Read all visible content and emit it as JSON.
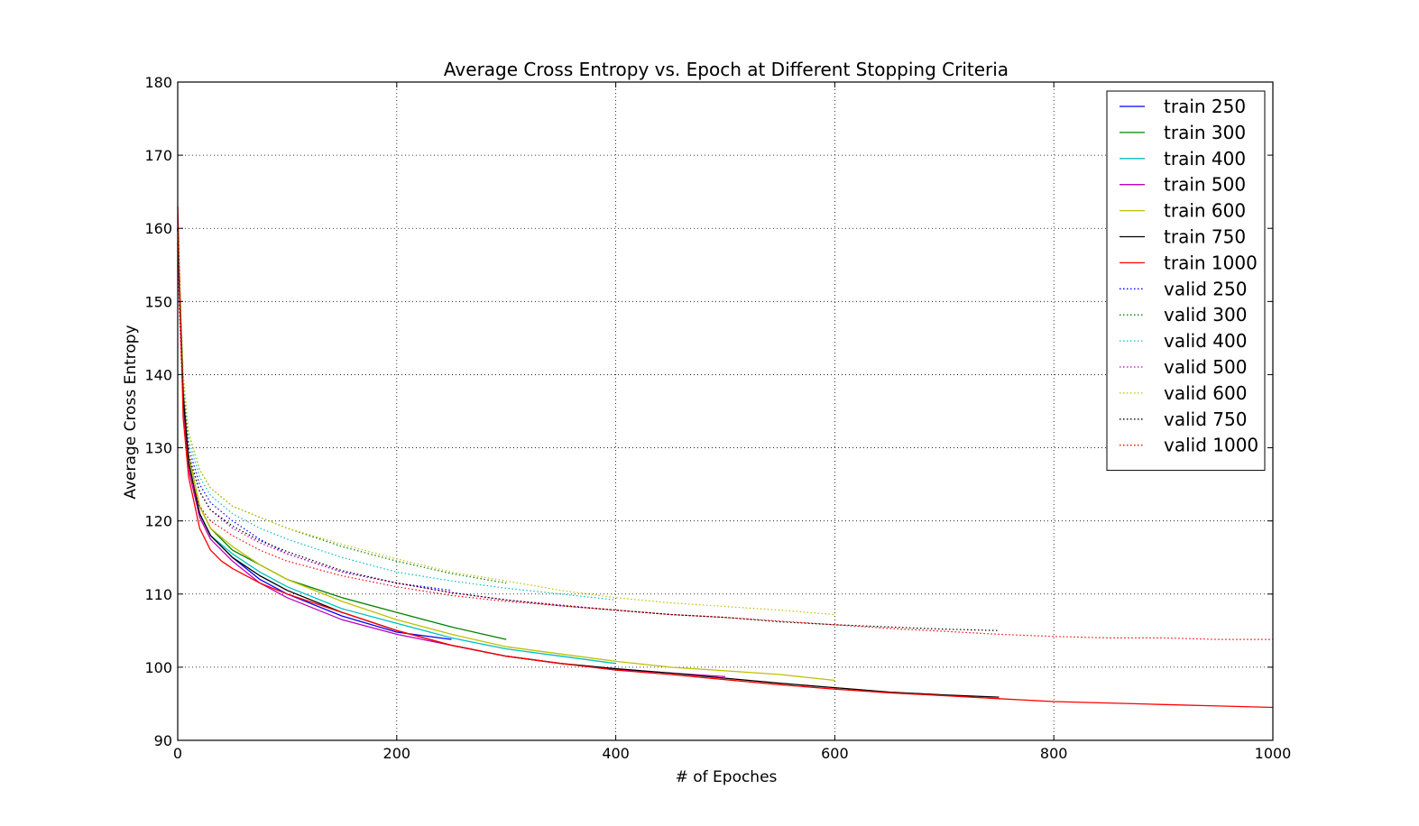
{
  "chart_data": {
    "type": "line",
    "title": "Average Cross Entropy vs. Epoch  at Different Stopping Criteria",
    "xlabel": "# of Epoches",
    "ylabel": "Average Cross Entropy",
    "xlim": [
      0,
      1000
    ],
    "ylim": [
      90,
      180
    ],
    "xticks": [
      0,
      200,
      400,
      600,
      800,
      1000
    ],
    "yticks": [
      90,
      100,
      110,
      120,
      130,
      140,
      150,
      160,
      170,
      180
    ],
    "grid": true,
    "legend_position": "top-right",
    "series": [
      {
        "name": "train 250",
        "color": "#0000ff",
        "style": "solid",
        "x": [
          0,
          5,
          10,
          20,
          30,
          50,
          75,
          100,
          150,
          200,
          250
        ],
        "y": [
          160,
          137,
          128,
          121,
          118,
          115,
          112,
          110,
          107,
          104.8,
          103.8
        ]
      },
      {
        "name": "train 300",
        "color": "#008000",
        "style": "solid",
        "x": [
          0,
          5,
          10,
          20,
          30,
          50,
          75,
          100,
          150,
          200,
          250,
          300
        ],
        "y": [
          160,
          138,
          129,
          122,
          119,
          116,
          114,
          112,
          109.5,
          107.5,
          105.5,
          103.8
        ]
      },
      {
        "name": "train 400",
        "color": "#00bfbf",
        "style": "solid",
        "x": [
          0,
          5,
          10,
          20,
          30,
          50,
          75,
          100,
          150,
          200,
          250,
          300,
          350,
          400
        ],
        "y": [
          160,
          137,
          128,
          121,
          118,
          115.5,
          113,
          111,
          108,
          106,
          104,
          102.5,
          101.5,
          100.5
        ]
      },
      {
        "name": "train 500",
        "color": "#bf00bf",
        "style": "solid",
        "x": [
          0,
          5,
          10,
          20,
          30,
          50,
          75,
          100,
          150,
          200,
          250,
          300,
          350,
          400,
          450,
          500
        ],
        "y": [
          158,
          136,
          127,
          120.5,
          117.5,
          114.5,
          111.5,
          109.5,
          106.5,
          104.5,
          103,
          101.5,
          100.5,
          99.7,
          99.2,
          98.7
        ]
      },
      {
        "name": "train 600",
        "color": "#bfbf00",
        "style": "solid",
        "x": [
          0,
          5,
          10,
          20,
          30,
          50,
          75,
          100,
          150,
          200,
          250,
          300,
          350,
          400,
          450,
          500,
          550,
          600
        ],
        "y": [
          160,
          138,
          129,
          122,
          119,
          116.5,
          114,
          112,
          109,
          106.5,
          104.5,
          102.8,
          101.8,
          100.8,
          100,
          99.5,
          99,
          98.2
        ]
      },
      {
        "name": "train 750",
        "color": "#000000",
        "style": "solid",
        "x": [
          0,
          5,
          10,
          20,
          30,
          50,
          75,
          100,
          150,
          200,
          250,
          300,
          350,
          400,
          450,
          500,
          550,
          600,
          650,
          700,
          750
        ],
        "y": [
          160,
          137,
          128,
          121,
          118,
          115,
          112.5,
          110.5,
          107.5,
          105,
          103,
          101.5,
          100.5,
          99.8,
          99.2,
          98.5,
          97.8,
          97.2,
          96.6,
          96.2,
          95.9
        ]
      },
      {
        "name": "train 1000",
        "color": "#ff0000",
        "style": "solid",
        "x": [
          0,
          5,
          10,
          20,
          30,
          40,
          50,
          75,
          100,
          150,
          200,
          250,
          300,
          350,
          400,
          450,
          500,
          550,
          600,
          650,
          700,
          750,
          800,
          850,
          900,
          950,
          1000
        ],
        "y": [
          163,
          134,
          126,
          119,
          116,
          114.5,
          113.5,
          111.5,
          110,
          107.5,
          105,
          103,
          101.5,
          100.5,
          99.6,
          99,
          98.3,
          97.6,
          97,
          96.5,
          96.1,
          95.7,
          95.3,
          95.1,
          94.9,
          94.7,
          94.5
        ]
      },
      {
        "name": "valid 250",
        "color": "#0000ff",
        "style": "dotted",
        "x": [
          0,
          5,
          10,
          20,
          30,
          50,
          75,
          100,
          150,
          200,
          250
        ],
        "y": [
          158,
          138,
          130,
          125,
          122.5,
          120,
          117.5,
          115.5,
          113,
          111.5,
          110.5
        ]
      },
      {
        "name": "valid 300",
        "color": "#008000",
        "style": "dotted",
        "x": [
          0,
          5,
          10,
          20,
          30,
          50,
          75,
          100,
          150,
          200,
          250,
          300
        ],
        "y": [
          160,
          140,
          132,
          127,
          124.5,
          122,
          120.5,
          119,
          116.5,
          114.5,
          112.8,
          111.5
        ]
      },
      {
        "name": "valid 400",
        "color": "#00bfbf",
        "style": "dotted",
        "x": [
          0,
          5,
          10,
          20,
          30,
          50,
          75,
          100,
          150,
          200,
          250,
          300,
          350,
          400
        ],
        "y": [
          158,
          139,
          131,
          126,
          123.5,
          121,
          119,
          117.5,
          115,
          113,
          111.8,
          110.8,
          110,
          109.2
        ]
      },
      {
        "name": "valid 500",
        "color": "#bf00bf",
        "style": "dotted",
        "x": [
          0,
          5,
          10,
          20,
          30,
          50,
          75,
          100,
          150,
          200,
          250,
          300,
          350,
          400,
          450,
          500
        ],
        "y": [
          157,
          137,
          129,
          124,
          121.5,
          119,
          117,
          115.5,
          113,
          111.5,
          110.2,
          109.2,
          108.5,
          107.8,
          107.2,
          106.8
        ]
      },
      {
        "name": "valid 600",
        "color": "#bfbf00",
        "style": "dotted",
        "x": [
          0,
          5,
          10,
          20,
          30,
          50,
          75,
          100,
          150,
          200,
          250,
          300,
          350,
          400,
          450,
          500,
          550,
          600
        ],
        "y": [
          160,
          140,
          132,
          127,
          124.5,
          122,
          120.5,
          119,
          116.8,
          114.8,
          113,
          111.8,
          110.5,
          109.5,
          108.8,
          108.3,
          107.8,
          107.2
        ]
      },
      {
        "name": "valid 750",
        "color": "#000000",
        "style": "dotted",
        "x": [
          0,
          5,
          10,
          20,
          30,
          50,
          75,
          100,
          150,
          200,
          250,
          300,
          350,
          400,
          450,
          500,
          550,
          600,
          650,
          700,
          750
        ],
        "y": [
          157,
          137,
          129,
          124,
          121.5,
          119.3,
          117.3,
          115.8,
          113.2,
          111.5,
          110.2,
          109.2,
          108.4,
          107.8,
          107.2,
          106.8,
          106.2,
          105.8,
          105.5,
          105.2,
          105
        ]
      },
      {
        "name": "valid 1000",
        "color": "#ff0000",
        "style": "dotted",
        "x": [
          0,
          5,
          10,
          20,
          30,
          50,
          75,
          100,
          150,
          200,
          250,
          300,
          350,
          400,
          450,
          500,
          550,
          600,
          650,
          700,
          750,
          800,
          850,
          900,
          950,
          1000
        ],
        "y": [
          155,
          135,
          127,
          122,
          120,
          118,
          116,
          114.5,
          112.5,
          111,
          109.8,
          109,
          108.4,
          107.8,
          107.2,
          106.8,
          106.3,
          105.8,
          105.3,
          104.9,
          104.5,
          104.2,
          104,
          104,
          103.8,
          103.8
        ]
      }
    ]
  }
}
